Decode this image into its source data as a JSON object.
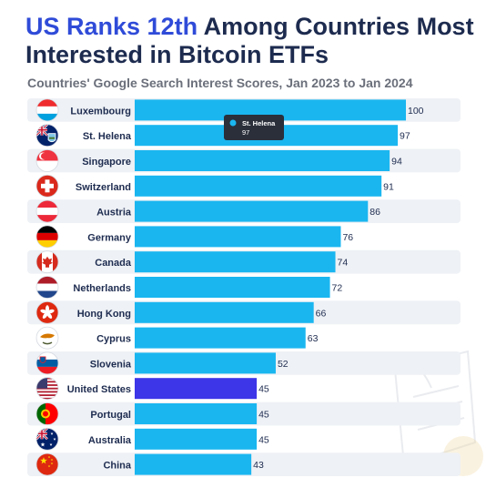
{
  "header": {
    "title_highlight": "US Ranks 12th",
    "title_rest": " Among Countries Most Interested in Bitcoin ETFs",
    "subtitle": "Countries' Google Search Interest Scores, Jan 2023 to Jan 2024"
  },
  "tooltip": {
    "label": "St. Helena",
    "value": "97"
  },
  "colors": {
    "bar": "#1ab6f0",
    "highlight_bar": "#3d35e8",
    "row_band": "#eef1f5",
    "title": "#1d2b4f",
    "title_highlight": "#2f4bd8"
  },
  "chart_data": {
    "type": "bar",
    "orientation": "horizontal",
    "categories": [
      "Luxembourg",
      "St. Helena",
      "Singapore",
      "Switzerland",
      "Austria",
      "Germany",
      "Canada",
      "Netherlands",
      "Hong Kong",
      "Cyprus",
      "Slovenia",
      "United States",
      "Portugal",
      "Australia",
      "China"
    ],
    "values": [
      100,
      97,
      94,
      91,
      86,
      76,
      74,
      72,
      66,
      63,
      52,
      45,
      45,
      45,
      43
    ],
    "flags": [
      "luxembourg-flag-icon",
      "st-helena-flag-icon",
      "singapore-flag-icon",
      "switzerland-flag-icon",
      "austria-flag-icon",
      "germany-flag-icon",
      "canada-flag-icon",
      "netherlands-flag-icon",
      "hong-kong-flag-icon",
      "cyprus-flag-icon",
      "slovenia-flag-icon",
      "united-states-flag-icon",
      "portugal-flag-icon",
      "australia-flag-icon",
      "china-flag-icon"
    ],
    "highlight": "United States",
    "xlim": [
      0,
      100
    ]
  }
}
